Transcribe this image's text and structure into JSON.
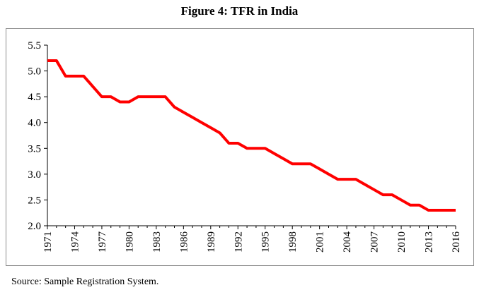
{
  "figure_title": "Figure 4: TFR in India",
  "source_note": "Source: Sample Registration System.",
  "chart_data": {
    "type": "line",
    "title": "Figure 4: TFR in India",
    "xlabel": "",
    "ylabel": "",
    "ylim": [
      2.0,
      5.5
    ],
    "yticks": [
      "2.0",
      "2.5",
      "3.0",
      "3.5",
      "4.0",
      "4.5",
      "5.0",
      "5.5"
    ],
    "xticks": [
      "1971",
      "1974",
      "1977",
      "1980",
      "1983",
      "1986",
      "1989",
      "1992",
      "1995",
      "1998",
      "2001",
      "2004",
      "2007",
      "2010",
      "2013",
      "2016"
    ],
    "grid": false,
    "legend": "none",
    "line_color": "#ff0000",
    "series": [
      {
        "x": [
          1971,
          1972,
          1973,
          1974,
          1975,
          1976,
          1977,
          1978,
          1979,
          1980,
          1981,
          1982,
          1983,
          1984,
          1985,
          1986,
          1987,
          1988,
          1989,
          1990,
          1991,
          1992,
          1993,
          1994,
          1995,
          1996,
          1997,
          1998,
          1999,
          2000,
          2001,
          2002,
          2003,
          2004,
          2005,
          2006,
          2007,
          2008,
          2009,
          2010,
          2011,
          2012,
          2013,
          2014,
          2015,
          2016
        ],
        "values": [
          5.2,
          5.2,
          4.9,
          4.9,
          4.9,
          4.7,
          4.5,
          4.5,
          4.4,
          4.4,
          4.5,
          4.5,
          4.5,
          4.5,
          4.3,
          4.2,
          4.1,
          4.0,
          3.9,
          3.8,
          3.6,
          3.6,
          3.5,
          3.5,
          3.5,
          3.4,
          3.3,
          3.2,
          3.2,
          3.2,
          3.1,
          3.0,
          2.9,
          2.9,
          2.9,
          2.8,
          2.7,
          2.6,
          2.6,
          2.5,
          2.4,
          2.4,
          2.3,
          2.3,
          2.3,
          2.3
        ]
      }
    ]
  }
}
